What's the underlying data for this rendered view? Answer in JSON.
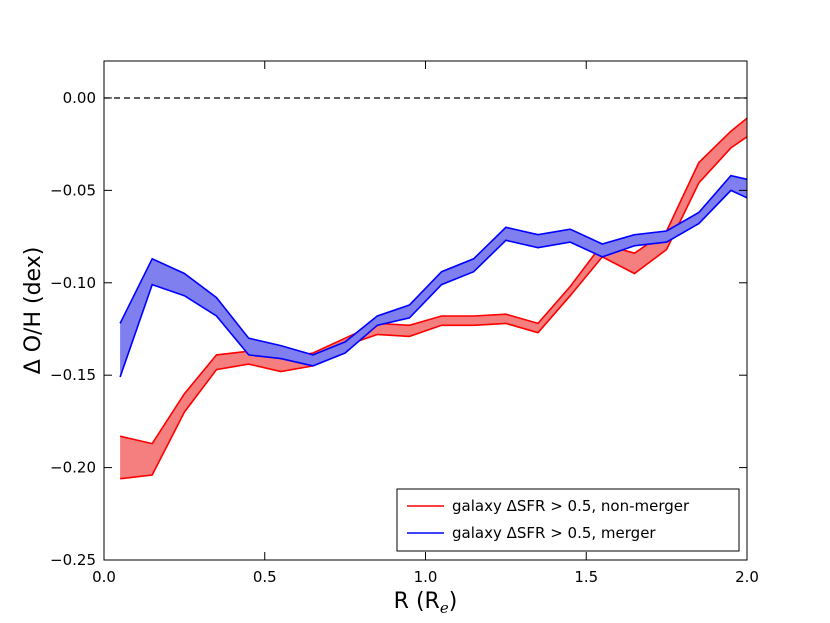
{
  "chart_data": {
    "type": "area",
    "title": "",
    "xlabel": "R (R",
    "xlabel_sub": "e",
    "xlabel_close": ")",
    "ylabel": "Δ O/H (dex)",
    "xlim": [
      0.0,
      2.0
    ],
    "ylim": [
      -0.25,
      0.02
    ],
    "x_ticks": [
      0.0,
      0.5,
      1.0,
      1.5,
      2.0
    ],
    "x_tick_labels": [
      "0.0",
      "0.5",
      "1.0",
      "1.5",
      "2.0"
    ],
    "y_ticks": [
      0.0,
      -0.05,
      -0.1,
      -0.15,
      -0.2,
      -0.25
    ],
    "y_tick_labels": [
      "0.00",
      "−0.05",
      "−0.10",
      "−0.15",
      "−0.20",
      "−0.25"
    ],
    "reference_line": {
      "y": 0.0,
      "style": "dashed",
      "color": "#000000"
    },
    "grid": false,
    "legend_position": "lower-right",
    "x": [
      0.05,
      0.15,
      0.25,
      0.35,
      0.45,
      0.55,
      0.65,
      0.75,
      0.85,
      0.95,
      1.05,
      1.15,
      1.25,
      1.35,
      1.45,
      1.55,
      1.65,
      1.75,
      1.85,
      1.95,
      2.0
    ],
    "series": [
      {
        "name": "galaxy ΔSFR > 0.5, non-merger",
        "color": "#ff0000",
        "fill": "#f57f7f",
        "upper": [
          -0.183,
          -0.187,
          -0.16,
          -0.139,
          -0.137,
          -0.141,
          -0.138,
          -0.13,
          -0.122,
          -0.123,
          -0.118,
          -0.118,
          -0.117,
          -0.122,
          -0.102,
          -0.079,
          -0.084,
          -0.072,
          -0.035,
          -0.018,
          -0.011
        ],
        "lower": [
          -0.206,
          -0.204,
          -0.17,
          -0.147,
          -0.144,
          -0.148,
          -0.145,
          -0.134,
          -0.128,
          -0.129,
          -0.123,
          -0.123,
          -0.122,
          -0.127,
          -0.107,
          -0.086,
          -0.095,
          -0.082,
          -0.046,
          -0.027,
          -0.021
        ]
      },
      {
        "name": "galaxy ΔSFR > 0.5, merger",
        "color": "#0000ff",
        "fill": "#7f7fef",
        "upper": [
          -0.122,
          -0.087,
          -0.095,
          -0.108,
          -0.13,
          -0.134,
          -0.139,
          -0.132,
          -0.118,
          -0.112,
          -0.094,
          -0.087,
          -0.07,
          -0.074,
          -0.071,
          -0.079,
          -0.074,
          -0.072,
          -0.062,
          -0.042,
          -0.044
        ],
        "lower": [
          -0.151,
          -0.101,
          -0.107,
          -0.118,
          -0.139,
          -0.141,
          -0.145,
          -0.138,
          -0.123,
          -0.119,
          -0.101,
          -0.094,
          -0.077,
          -0.081,
          -0.078,
          -0.086,
          -0.08,
          -0.078,
          -0.068,
          -0.05,
          -0.054
        ]
      }
    ]
  }
}
